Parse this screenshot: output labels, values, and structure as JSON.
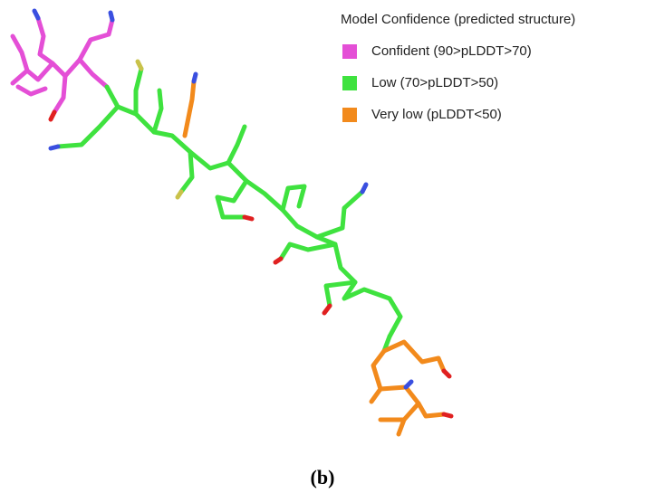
{
  "legend": {
    "title": "Model Confidence (predicted structure)",
    "items": [
      {
        "label": "Confident (90>pLDDT>70)",
        "color": "#e44fd6"
      },
      {
        "label": "Low (70>pLDDT>50)",
        "color": "#3fe23f"
      },
      {
        "label": "Very low (pLDDT<50)",
        "color": "#f28a1c"
      }
    ]
  },
  "caption": "(b)"
}
